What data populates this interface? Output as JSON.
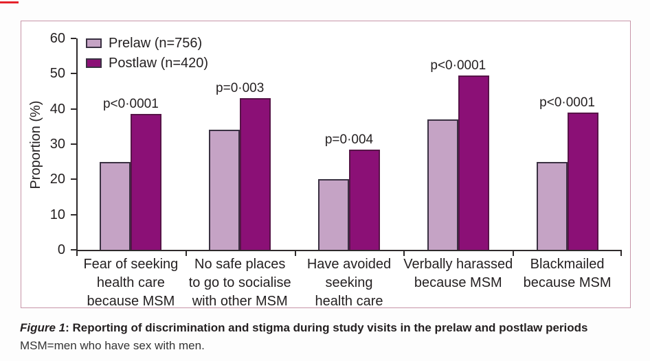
{
  "colors": {
    "prelaw_fill": "#c5a3c5",
    "postlaw_fill": "#8b1076",
    "bar_outline": "#3a3142",
    "axis": "#2e2a2b",
    "text": "#231f20",
    "panel_border": "#c794a8",
    "artifact_red": "#e5232b"
  },
  "caption": {
    "figure_label": "Figure 1",
    "separator": ": ",
    "title": "Reporting of discrimination and stigma during study visits in the prelaw and postlaw periods",
    "footnote": "MSM=men who have sex with men."
  },
  "chart_data": {
    "type": "bar",
    "title": "",
    "xlabel": "",
    "ylabel": "Proportion (%)",
    "ylim": [
      0,
      60
    ],
    "yticks": [
      0,
      10,
      20,
      30,
      40,
      50,
      60
    ],
    "grid": false,
    "legend_position": "top-left",
    "categories": [
      "Fear of seeking\nhealth care\nbecause MSM",
      "No safe places\nto go to socialise\nwith other MSM",
      "Have avoided\nseeking\nhealth care",
      "Verbally harassed\nbecause MSM",
      "Blackmailed\nbecause MSM"
    ],
    "series": [
      {
        "name": "Prelaw (n=756)",
        "color": "#c5a3c5",
        "values": [
          25,
          34,
          20,
          37,
          25
        ]
      },
      {
        "name": "Postlaw (n=420)",
        "color": "#8b1076",
        "values": [
          38.5,
          43,
          28.5,
          49.5,
          39
        ]
      }
    ],
    "p_values": [
      "p<0·0001",
      "p=0·003",
      "p=0·004",
      "p<0·0001",
      "p<0·0001"
    ]
  }
}
